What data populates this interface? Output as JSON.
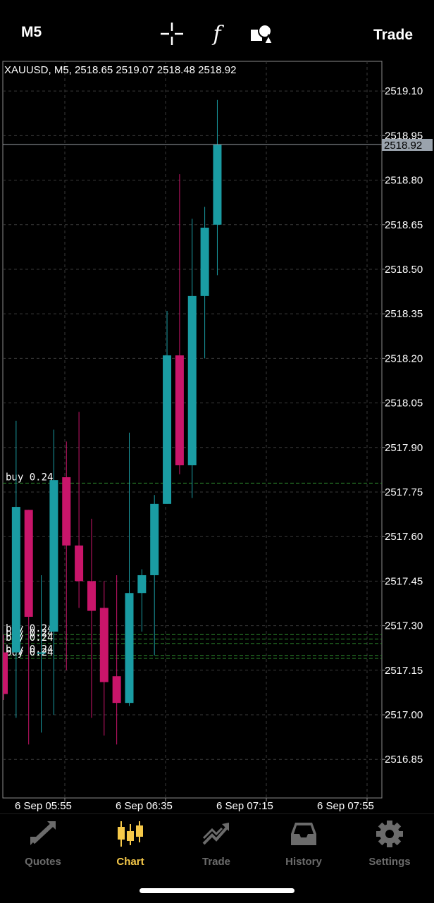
{
  "topbar": {
    "timeframe": "M5",
    "crosshair_icon": "crosshair-icon",
    "indicators_icon": "function-icon",
    "objects_icon": "shapes-icon",
    "trade_label": "Trade"
  },
  "chart": {
    "info_text": "XAUUSD, M5, 2518.65 2519.07 2518.48 2518.92",
    "current_price": "2518.92",
    "price_labels": [
      "2519.10",
      "2518.95",
      "2518.80",
      "2518.65",
      "2518.50",
      "2518.35",
      "2518.20",
      "2518.05",
      "2517.90",
      "2517.75",
      "2517.60",
      "2517.45",
      "2517.30",
      "2517.15",
      "2517.00",
      "2516.85"
    ],
    "time_labels": [
      "6 Sep 05:55",
      "6 Sep 06:35",
      "6 Sep 07:15",
      "6 Sep 07:55"
    ],
    "orders": [
      {
        "label": "buy 0.24",
        "price": 2517.78
      },
      {
        "label": "buy 0.24",
        "price": 2517.27
      },
      {
        "label": "buy 0.24",
        "price": 2517.255
      },
      {
        "label": "buy 0.24",
        "price": 2517.24
      },
      {
        "label": "buy 0.24",
        "price": 2517.2
      },
      {
        "label": "buy 0.24",
        "price": 2517.19
      }
    ],
    "colors": {
      "bull": "#1a9ca3",
      "bear": "#c9156a",
      "grid": "#3a3a3a",
      "order_line": "#2e8b2e",
      "border": "#8a8a8a"
    }
  },
  "chart_data": {
    "type": "candlestick",
    "title": "XAUUSD, M5",
    "ylim": [
      2516.72,
      2519.2
    ],
    "candles": [
      {
        "o": 2517.21,
        "h": 2517.27,
        "l": 2517.05,
        "c": 2517.07
      },
      {
        "o": 2517.21,
        "h": 2517.99,
        "l": 2516.99,
        "c": 2517.7
      },
      {
        "o": 2517.69,
        "h": 2517.69,
        "l": 2516.9,
        "c": 2517.33
      },
      {
        "o": 2517.21,
        "h": 2517.47,
        "l": 2516.94,
        "c": 2517.21
      },
      {
        "o": 2517.28,
        "h": 2517.96,
        "l": 2517.0,
        "c": 2517.79
      },
      {
        "o": 2517.8,
        "h": 2517.92,
        "l": 2517.15,
        "c": 2517.57
      },
      {
        "o": 2517.57,
        "h": 2518.02,
        "l": 2517.36,
        "c": 2517.45
      },
      {
        "o": 2517.45,
        "h": 2517.66,
        "l": 2516.99,
        "c": 2517.35
      },
      {
        "o": 2517.36,
        "h": 2517.45,
        "l": 2516.93,
        "c": 2517.11
      },
      {
        "o": 2517.13,
        "h": 2517.47,
        "l": 2516.9,
        "c": 2517.04
      },
      {
        "o": 2517.04,
        "h": 2517.95,
        "l": 2517.03,
        "c": 2517.41
      },
      {
        "o": 2517.41,
        "h": 2517.49,
        "l": 2517.28,
        "c": 2517.47
      },
      {
        "o": 2517.47,
        "h": 2517.74,
        "l": 2517.2,
        "c": 2517.71
      },
      {
        "o": 2517.71,
        "h": 2518.36,
        "l": 2517.71,
        "c": 2518.21
      },
      {
        "o": 2518.21,
        "h": 2518.82,
        "l": 2517.81,
        "c": 2517.84
      },
      {
        "o": 2517.84,
        "h": 2518.67,
        "l": 2517.73,
        "c": 2518.41
      },
      {
        "o": 2518.41,
        "h": 2518.71,
        "l": 2518.2,
        "c": 2518.64
      },
      {
        "o": 2518.65,
        "h": 2519.07,
        "l": 2518.48,
        "c": 2518.92
      }
    ]
  },
  "tabs": [
    {
      "label": "Quotes",
      "icon": "quotes-icon",
      "active": false
    },
    {
      "label": "Chart",
      "icon": "candles-icon",
      "active": true
    },
    {
      "label": "Trade",
      "icon": "trade-icon",
      "active": false
    },
    {
      "label": "History",
      "icon": "inbox-icon",
      "active": false
    },
    {
      "label": "Settings",
      "icon": "gear-icon",
      "active": false
    }
  ]
}
